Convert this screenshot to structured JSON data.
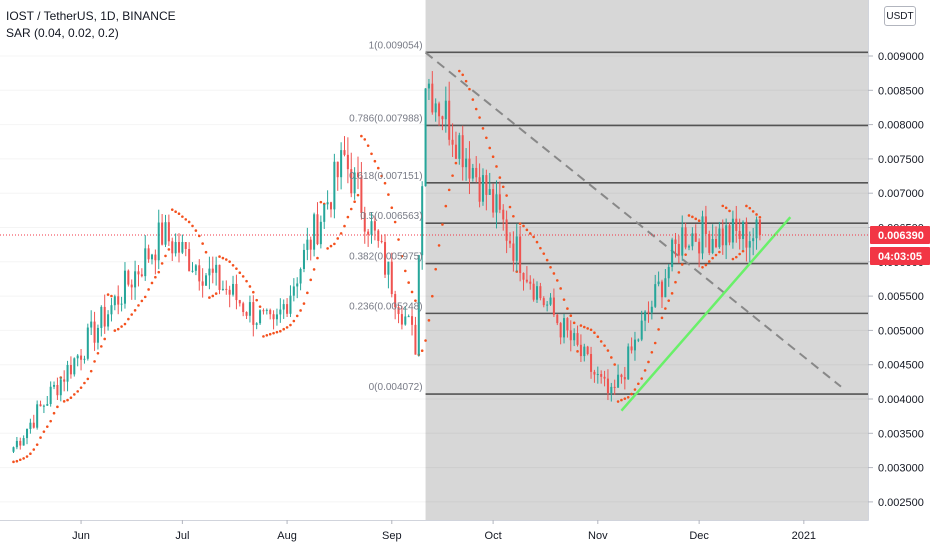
{
  "legend": {
    "symbol_line": "IOST / TetherUS, 1D, BINANCE",
    "indicator_line": "SAR (0.04, 0.02, 0.2)"
  },
  "price_scale": {
    "unit_button": "USDT",
    "ticks": [
      "0.009000",
      "0.008500",
      "0.008000",
      "0.007500",
      "0.007000",
      "0.006500",
      "0.006000",
      "0.005500",
      "0.005000",
      "0.004500",
      "0.004000",
      "0.003500",
      "0.003000",
      "0.002500"
    ],
    "last_price_label": "0.006390",
    "countdown_label": "04:03:05",
    "last_price_color": "#f23645"
  },
  "time_scale": {
    "ticks": [
      "Jun",
      "Jul",
      "Aug",
      "Sep",
      "Oct",
      "Nov",
      "Dec",
      "2021"
    ]
  },
  "fib_levels": [
    {
      "label": "1(0.009054)",
      "ratio": 1,
      "price": 0.009054
    },
    {
      "label": "0.786(0.007988)",
      "ratio": 0.786,
      "price": 0.007988
    },
    {
      "label": "0.618(0.007151)",
      "ratio": 0.618,
      "price": 0.007151
    },
    {
      "label": "0.5(0.006563)",
      "ratio": 0.5,
      "price": 0.006563
    },
    {
      "label": "0.382(0.005975)",
      "ratio": 0.382,
      "price": 0.005975
    },
    {
      "label": "0.236(0.005248)",
      "ratio": 0.236,
      "price": 0.005248
    },
    {
      "label": "0(0.004072)",
      "ratio": 0,
      "price": 0.004072
    }
  ],
  "colors": {
    "up": "#26a69a",
    "down": "#ef5350",
    "sar": "#f4511e",
    "trendline": "#69f069",
    "dashed_line": "#888888",
    "fib_zone": "#d7d7d7",
    "fib_line": "#555555"
  },
  "chart_data": {
    "type": "candlestick",
    "symbol": "IOST / TetherUS, 1D, BINANCE",
    "indicator": "SAR (0.04, 0.02, 0.2)",
    "y_range": [
      0.0024,
      0.0096
    ],
    "x_range": [
      "2020-05-08",
      "2021-01-20"
    ],
    "last_price": 0.00639,
    "fibonacci_retracement": {
      "start": {
        "date": "2020-09-11",
        "price": 0.009054
      },
      "end_price": 0.004072
    },
    "trendline_up": [
      {
        "date": "2020-11-08",
        "price": 0.00383
      },
      {
        "date": "2020-12-28",
        "price": 0.00665
      }
    ],
    "dashed_line_down": [
      {
        "date": "2020-09-11",
        "price": 0.00905
      },
      {
        "date": "2021-01-12",
        "price": 0.00418
      }
    ],
    "key_points": [
      {
        "date": "2020-05-12",
        "close": 0.0033
      },
      {
        "date": "2020-06-25",
        "close": 0.0064
      },
      {
        "date": "2020-07-28",
        "close": 0.005
      },
      {
        "date": "2020-08-18",
        "close": 0.0075
      },
      {
        "date": "2020-09-08",
        "close": 0.0048
      },
      {
        "date": "2020-09-11",
        "close": 0.0087
      },
      {
        "date": "2020-10-15",
        "close": 0.0055
      },
      {
        "date": "2020-11-05",
        "close": 0.004
      },
      {
        "date": "2020-11-26",
        "close": 0.0064
      },
      {
        "date": "2020-12-19",
        "close": 0.00639
      }
    ]
  }
}
